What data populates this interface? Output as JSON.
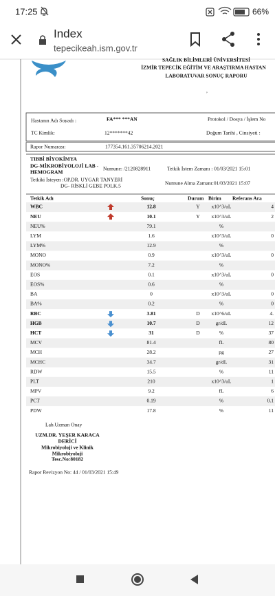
{
  "status_bar": {
    "time": "17:25",
    "battery": "66%"
  },
  "browser": {
    "title": "Index",
    "url": "tepecikeah.ism.gov.tr"
  },
  "report": {
    "header": {
      "university": "SAĞLIK BİLİMLERİ ÜNİVERSİTESİ",
      "hospital": "İZMİR TEPECİK EĞİTİM VE ARAŞTIRMA HASTAN",
      "title": "LABORATUVAR SONUÇ RAPORU",
      "mark": ","
    },
    "patient": {
      "name_label": "Hastanın Adı Soyadı :",
      "name": "FA*** ***AN",
      "protocol_label": "Protokol / Dosya / İşlem No",
      "tc_label": "TC Kimlik:",
      "tc": "12*******42",
      "birth_label": "Doğum Tarihi , Cinsiyeti :"
    },
    "report_no_label": "Rapor Numarası:",
    "report_no": "177354.161.35706214.2021",
    "section": {
      "dept": "TIBBİ BİYOKİMYA",
      "lab_1": "DG-MİKROBİYOLOJİ LAB -",
      "lab_2": "HEMOGRAM",
      "sample": "Numune: /2120828911",
      "request_time": "Tetkik İstem Zamanı : 01/03/2021 15:01",
      "requester": "Tetkiki İsteyen :OP.DR. UYGAR TANYERİ",
      "clinic": "DG- RİSKLİ GEBE POLK.5",
      "sample_time": "Numune Alma Zamanı:01/03/2021 15:07"
    },
    "table": {
      "columns": [
        "Tetkik Adı",
        "Sonuç",
        "Durum",
        "Birim",
        "Referans Ara"
      ],
      "rows": [
        {
          "name": "WBC",
          "result": "12.8",
          "flag": "up",
          "status": "Y",
          "unit": "x10^3/uL",
          "ref": "4",
          "bold": true
        },
        {
          "name": "NEU",
          "result": "10.1",
          "flag": "up",
          "status": "Y",
          "unit": "x10^3/uL",
          "ref": "2",
          "bold": true
        },
        {
          "name": "NEU%",
          "result": "79.1",
          "flag": null,
          "status": null,
          "unit": "%",
          "ref": null,
          "bold": false
        },
        {
          "name": "LYM",
          "result": "1.6",
          "flag": null,
          "status": null,
          "unit": "x10^3/uL",
          "ref": "0",
          "bold": false
        },
        {
          "name": "LYM%",
          "result": "12.9",
          "flag": null,
          "status": null,
          "unit": "%",
          "ref": null,
          "bold": false
        },
        {
          "name": "MONO",
          "result": "0.9",
          "flag": null,
          "status": null,
          "unit": "x10^3/uL",
          "ref": "0",
          "bold": false
        },
        {
          "name": "MONO%",
          "result": "7.2",
          "flag": null,
          "status": null,
          "unit": "%",
          "ref": null,
          "bold": false
        },
        {
          "name": "EOS",
          "result": "0.1",
          "flag": null,
          "status": null,
          "unit": "x10^3/uL",
          "ref": "0",
          "bold": false
        },
        {
          "name": "EOS%",
          "result": "0.6",
          "flag": null,
          "status": null,
          "unit": "%",
          "ref": null,
          "bold": false
        },
        {
          "name": "BA",
          "result": "0",
          "flag": null,
          "status": null,
          "unit": "x10^3/uL",
          "ref": "0",
          "bold": false
        },
        {
          "name": "BA%",
          "result": "0.2",
          "flag": null,
          "status": null,
          "unit": "%",
          "ref": "0",
          "bold": false
        },
        {
          "name": "RBC",
          "result": "3.81",
          "flag": "down",
          "status": "D",
          "unit": "x10^6/uL",
          "ref": "4.",
          "bold": true
        },
        {
          "name": "HGB",
          "result": "10.7",
          "flag": "down",
          "status": "D",
          "unit": "gr/dL",
          "ref": "12",
          "bold": true
        },
        {
          "name": "HCT",
          "result": "31",
          "flag": "down",
          "status": "D",
          "unit": "%",
          "ref": "37",
          "bold": true
        },
        {
          "name": "MCV",
          "result": "81.4",
          "flag": null,
          "status": null,
          "unit": "fL",
          "ref": "80",
          "bold": false
        },
        {
          "name": "MCH",
          "result": "28.2",
          "flag": null,
          "status": null,
          "unit": "pg",
          "ref": "27",
          "bold": false
        },
        {
          "name": "MCHC",
          "result": "34.7",
          "flag": null,
          "status": null,
          "unit": "gr/dL",
          "ref": "31",
          "bold": false
        },
        {
          "name": "RDW",
          "result": "15.5",
          "flag": null,
          "status": null,
          "unit": "%",
          "ref": "11",
          "bold": false
        },
        {
          "name": "PLT",
          "result": "210",
          "flag": null,
          "status": null,
          "unit": "x10^3/uL",
          "ref": "1",
          "bold": false
        },
        {
          "name": "MPV",
          "result": "9.2",
          "flag": null,
          "status": null,
          "unit": "fL",
          "ref": "6",
          "bold": false
        },
        {
          "name": "PCT",
          "result": "0.19",
          "flag": null,
          "status": null,
          "unit": "%",
          "ref": "0.1",
          "bold": false
        },
        {
          "name": "PDW",
          "result": "17.8",
          "flag": null,
          "status": null,
          "unit": "%",
          "ref": "11",
          "bold": false
        }
      ]
    },
    "footer": {
      "approval": "Lab.Uzman Onay",
      "doctor_1": "UZM.DR. YEŞER KARACA",
      "doctor_2": "DERİCİ",
      "specialty_1": "Mikrobiyoloji ve Klinik",
      "specialty_2": "Mikrobiyoloji",
      "reg_no": "Tesc.No:80182",
      "revision": "Rapor Revizyon No:  44 / 01/03/2021 15:49"
    }
  }
}
